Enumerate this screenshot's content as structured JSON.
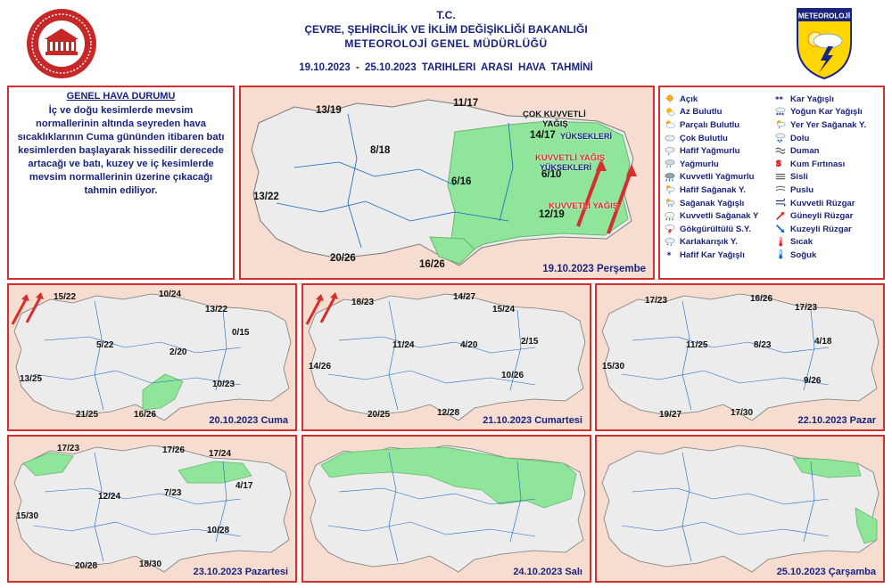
{
  "header": {
    "line1": "T.C.",
    "line2": "ÇEVRE, ŞEHİRCİLİK VE İKLİM DEĞİŞİKLİĞİ BAKANLIĞI",
    "line3": "METEOROLOJİ  GENEL  MÜDÜRLÜĞÜ",
    "line4": "19.10.2023  -  25.10.2023   TARIHLERI ARASI HAVA TAHMİNİ",
    "logo_right_text": "METEOROLOJİ"
  },
  "summary": {
    "title": "GENEL HAVA DURUMU",
    "text": "İç ve doğu kesimlerde mevsim normallerinin altında seyreden hava sıcaklıklarının Cuma gününden itibaren batı kesimlerden başlayarak hissedilir derecede artacağı ve batı, kuzey ve iç kesimlerde mevsim normallerinin üzerine çıkacağı tahmin ediliyor."
  },
  "legend": {
    "col1": [
      {
        "label": "Açık",
        "icon": "sun-icon"
      },
      {
        "label": "Az Bulutlu",
        "icon": "sun-small-cloud-icon"
      },
      {
        "label": "Parçalı Bulutlu",
        "icon": "sun-cloud-icon"
      },
      {
        "label": "Çok Bulutlu",
        "icon": "cloud-icon"
      },
      {
        "label": "Hafif Yağmurlu",
        "icon": "light-rain-icon"
      },
      {
        "label": "Yağmurlu",
        "icon": "rain-icon"
      },
      {
        "label": "Kuvvetli Yağmurlu",
        "icon": "heavy-rain-icon"
      },
      {
        "label": "Hafif Sağanak Y.",
        "icon": "light-shower-icon"
      },
      {
        "label": "Sağanak Yağışlı",
        "icon": "shower-icon"
      },
      {
        "label": "Kuvvetli Sağanak Y",
        "icon": "heavy-shower-icon"
      },
      {
        "label": "Gökgürültülü S.Y.",
        "icon": "thunder-icon"
      },
      {
        "label": "Karlakarışık Y.",
        "icon": "sleet-icon"
      },
      {
        "label": "Hafif Kar Yağışlı",
        "icon": "light-snow-icon"
      }
    ],
    "col2": [
      {
        "label": "Kar Yağışlı",
        "icon": "snow-icon"
      },
      {
        "label": "Yoğun Kar Yağışlı",
        "icon": "heavy-snow-icon"
      },
      {
        "label": "Yer Yer Sağanak Y.",
        "icon": "local-shower-icon"
      },
      {
        "label": "Dolu",
        "icon": "hail-icon"
      },
      {
        "label": "Duman",
        "icon": "smoke-icon"
      },
      {
        "label": "Kum Fırtınası",
        "icon": "sandstorm-icon"
      },
      {
        "label": "Sisli",
        "icon": "fog-icon"
      },
      {
        "label": "Puslu",
        "icon": "mist-icon"
      },
      {
        "label": "Kuvvetli Rüzgar",
        "icon": "strong-wind-icon"
      },
      {
        "label": "Güneyli Rüzgar",
        "icon": "south-wind-arrow-icon"
      },
      {
        "label": "Kuzeyli Rüzgar",
        "icon": "north-wind-arrow-icon"
      },
      {
        "label": "Sıcak",
        "icon": "hot-thermometer-icon"
      },
      {
        "label": "Soğuk",
        "icon": "cold-thermometer-icon"
      }
    ]
  },
  "maps": {
    "day1": {
      "date": "19.10.2023 Perşembe",
      "temps": [
        "13/19",
        "11/17",
        "8/18",
        "13/22",
        "6/16",
        "14/17",
        "6/10",
        "12/19",
        "20/26",
        "16/26"
      ],
      "notes": {
        "cok_kuvvetli": "ÇOK KUVVETLİ",
        "yagis": "YAĞIŞ",
        "yukseklerde": "YÜKSEKLERİ",
        "kuvvetli_yagis": "KUVVETLİ YAĞIŞ",
        "yukseklerde2": "YÜKSEKLERİ",
        "kuvvetli_yagis2": "KUVVETLİ YAĞIŞ",
        "yuksek": "YÜKSEKLERİ"
      }
    },
    "day2": {
      "date": "20.10.2023 Cuma",
      "temps": [
        "15/22",
        "10/24",
        "13/22",
        "5/22",
        "0/15",
        "2/20",
        "13/25",
        "10/23",
        "21/25",
        "16/26"
      ]
    },
    "day3": {
      "date": "21.10.2023 Cumartesi",
      "temps": [
        "18/23",
        "14/27",
        "15/24",
        "11/24",
        "4/20",
        "2/15",
        "14/26",
        "10/26",
        "20/25",
        "12/28"
      ]
    },
    "day4": {
      "date": "22.10.2023 Pazar",
      "temps": [
        "17/23",
        "16/26",
        "17/23",
        "11/25",
        "8/23",
        "4/18",
        "15/30",
        "9/26",
        "19/27",
        "17/30"
      ]
    },
    "day5": {
      "date": "23.10.2023 Pazartesi",
      "temps": [
        "17/23",
        "17/26",
        "17/24",
        "12/24",
        "7/23",
        "4/17",
        "15/30",
        "10/28",
        "20/28",
        "18/30"
      ]
    },
    "day6": {
      "date": "24.10.2023 Salı"
    },
    "day7": {
      "date": "25.10.2023 Çarşamba"
    }
  },
  "colors": {
    "frame": "#d32f2f",
    "title": "#1a237e",
    "sea": "#f6ddd0",
    "land": "#ececec",
    "rain_area": "#8fe59a"
  }
}
